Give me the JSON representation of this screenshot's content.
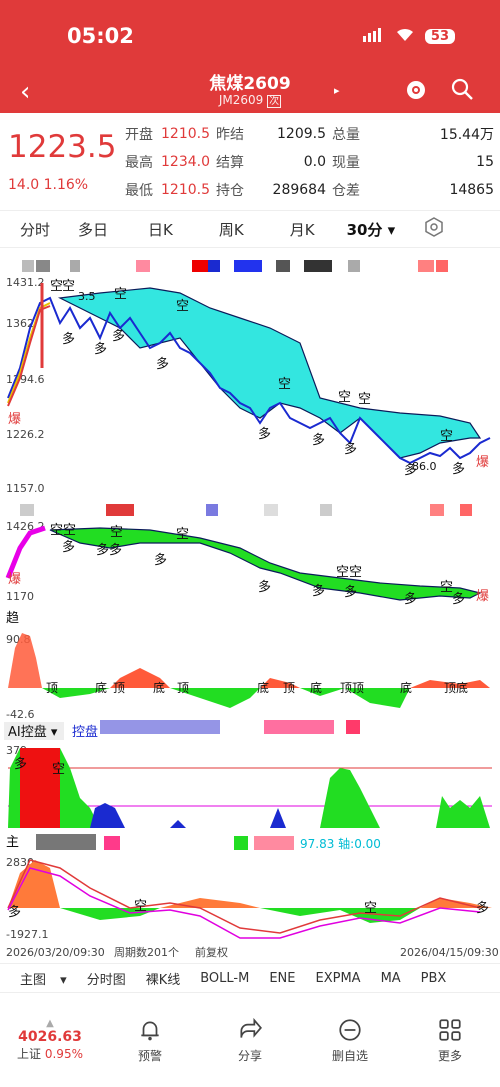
{
  "status_bar": {
    "time": "05:02",
    "battery": "53"
  },
  "header": {
    "title": "焦煤2609",
    "subtitle": "JM2609",
    "subtitle_badge": "次"
  },
  "quote": {
    "price": "1223.5",
    "change": "14.0",
    "change_pct": "1.16%",
    "rows": [
      {
        "l1": "开盘",
        "v1": "1210.5",
        "l2": "昨结",
        "v2": "1209.5",
        "l3": "总量",
        "v3": "15.44万"
      },
      {
        "l1": "最高",
        "v1": "1234.0",
        "l2": "结算",
        "v2": "0.0",
        "l3": "现量",
        "v3": "15"
      },
      {
        "l1": "最低",
        "v1": "1210.5",
        "l2": "持仓",
        "v2": "289684",
        "l3": "仓差",
        "v3": "14865"
      }
    ]
  },
  "tabs": [
    "分时",
    "多日",
    "日K",
    "周K",
    "月K",
    "30分"
  ],
  "main_chart": {
    "y_labels": [
      "1431.2",
      "1362",
      "1294.6",
      "1226.2",
      "1157.0"
    ],
    "annotations": [
      "空",
      "空",
      "3.5",
      "空",
      "空",
      "多",
      "多",
      "多",
      "多",
      "空",
      "空",
      "空",
      "多",
      "多",
      "多",
      "多",
      "空",
      "爆",
      "多",
      "爆",
      "86.0"
    ]
  },
  "chart2": {
    "y_labels": [
      "1426.2",
      "1170"
    ]
  },
  "chart3": {
    "title": "趋",
    "y_labels": [
      "90.8",
      "-42.6"
    ],
    "labels": [
      "顶",
      "底",
      "顶",
      "底",
      "顶",
      "底",
      "顶",
      "底",
      "顶顶",
      "底",
      "顶底"
    ]
  },
  "chart4": {
    "title": "AI控盘",
    "label2": "控盘",
    "y_labels": [
      "379."
    ],
    "labels": [
      "多",
      "空"
    ]
  },
  "chart5": {
    "title": "主",
    "readout": "97.83 轴:0.00",
    "y_labels": [
      "2830.",
      "-1927.1"
    ],
    "labels": [
      "多",
      "空",
      "空",
      "多"
    ]
  },
  "date_bar": {
    "start": "2026/03/20/09:30",
    "period": "周期数201个",
    "adj": "前复权",
    "end": "2026/04/15/09:30"
  },
  "bottom_tabs": [
    "主图",
    "分时图",
    "裸K线",
    "BOLL-M",
    "ENE",
    "EXPMA",
    "MA",
    "PBX"
  ],
  "footer": {
    "index_value": "4026.63",
    "index_label": "上证",
    "index_change": "0.95%",
    "items": [
      "预警",
      "分享",
      "删自选",
      "更多"
    ]
  },
  "colors": {
    "red": "#e03a3a",
    "cyan": "#33e6e0",
    "green": "#22dd22",
    "blue": "#1a2ad0"
  }
}
